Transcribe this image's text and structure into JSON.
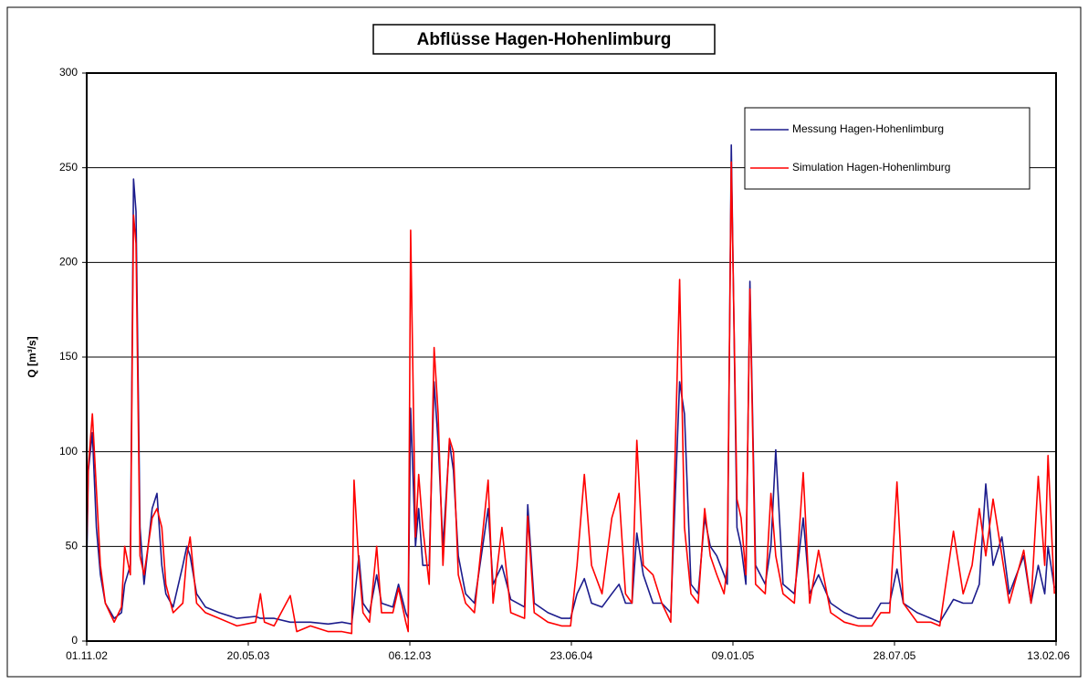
{
  "chart_data": {
    "type": "line",
    "title": "Abflüsse Hagen-Hohenlimburg",
    "ylabel": "Q [m³/s]",
    "legend": "upper right",
    "grid": true,
    "ylim": [
      0,
      300
    ],
    "yticks": [
      0,
      50,
      100,
      150,
      200,
      250,
      300
    ],
    "xlim": [
      "2002-11-01",
      "2006-02-13"
    ],
    "xticks": [
      {
        "value": "2002-11-01",
        "label": "01.11.02"
      },
      {
        "value": "2003-05-20",
        "label": "20.05.03"
      },
      {
        "value": "2003-12-06",
        "label": "06.12.03"
      },
      {
        "value": "2004-06-23",
        "label": "23.06.04"
      },
      {
        "value": "2005-01-09",
        "label": "09.01.05"
      },
      {
        "value": "2005-07-28",
        "label": "28.07.05"
      },
      {
        "value": "2006-02-13",
        "label": "13.02.06"
      }
    ],
    "x": [
      "2002-11-01",
      "2002-11-03",
      "2002-11-08",
      "2002-11-13",
      "2002-11-18",
      "2002-11-24",
      "2002-12-05",
      "2002-12-14",
      "2002-12-18",
      "2002-12-25",
      "2002-12-29",
      "2003-01-01",
      "2003-01-06",
      "2003-01-11",
      "2003-01-21",
      "2003-01-27",
      "2003-02-02",
      "2003-02-07",
      "2003-02-16",
      "2003-02-28",
      "2003-03-05",
      "2003-03-09",
      "2003-03-17",
      "2003-03-28",
      "2003-04-14",
      "2003-05-06",
      "2003-05-29",
      "2003-06-04",
      "2003-06-09",
      "2003-06-21",
      "2003-07-11",
      "2003-07-19",
      "2003-08-05",
      "2003-08-27",
      "2003-09-13",
      "2003-09-25",
      "2003-09-28",
      "2003-10-04",
      "2003-10-09",
      "2003-10-17",
      "2003-10-26",
      "2003-11-01",
      "2003-11-15",
      "2003-11-22",
      "2003-12-01",
      "2003-12-04",
      "2003-12-07",
      "2003-12-13",
      "2003-12-17",
      "2003-12-22",
      "2003-12-30",
      "2004-01-05",
      "2004-01-10",
      "2004-01-16",
      "2004-01-24",
      "2004-01-29",
      "2004-02-04",
      "2004-02-13",
      "2004-02-24",
      "2004-03-12",
      "2004-03-18",
      "2004-03-29",
      "2004-04-09",
      "2004-04-26",
      "2004-04-30",
      "2004-05-08",
      "2004-05-25",
      "2004-06-11",
      "2004-06-22",
      "2004-06-30",
      "2004-07-09",
      "2004-07-18",
      "2004-07-31",
      "2004-08-12",
      "2004-08-21",
      "2004-08-29",
      "2004-09-06",
      "2004-09-12",
      "2004-09-20",
      "2004-10-02",
      "2004-10-13",
      "2004-10-24",
      "2004-11-04",
      "2004-11-10",
      "2004-11-18",
      "2004-11-27",
      "2004-12-05",
      "2004-12-12",
      "2004-12-20",
      "2004-12-29",
      "2005-01-02",
      "2005-01-07",
      "2005-01-14",
      "2005-01-19",
      "2005-01-25",
      "2005-01-30",
      "2005-02-06",
      "2005-02-18",
      "2005-02-25",
      "2005-03-03",
      "2005-03-12",
      "2005-03-26",
      "2005-04-06",
      "2005-04-14",
      "2005-04-25",
      "2005-05-10",
      "2005-05-27",
      "2005-06-13",
      "2005-06-30",
      "2005-07-11",
      "2005-07-22",
      "2005-07-31",
      "2005-08-08",
      "2005-08-25",
      "2005-09-11",
      "2005-09-22",
      "2005-10-09",
      "2005-10-21",
      "2005-11-01",
      "2005-11-10",
      "2005-11-18",
      "2005-11-27",
      "2005-12-08",
      "2005-12-17",
      "2006-01-04",
      "2006-01-13",
      "2006-01-22",
      "2006-01-30",
      "2006-02-03",
      "2006-02-11"
    ],
    "series": [
      {
        "name": "Messung Hagen-Hohenlimburg",
        "color": "#1c1c8c",
        "values": [
          40,
          90,
          110,
          60,
          35,
          20,
          12,
          15,
          30,
          40,
          244,
          227,
          60,
          30,
          70,
          78,
          40,
          25,
          18,
          40,
          50,
          45,
          25,
          18,
          15,
          12,
          13,
          12,
          12,
          12,
          10,
          10,
          10,
          9,
          10,
          9,
          20,
          45,
          20,
          15,
          35,
          20,
          18,
          30,
          15,
          12,
          123,
          50,
          70,
          40,
          40,
          137,
          105,
          50,
          105,
          90,
          45,
          25,
          20,
          70,
          30,
          40,
          22,
          18,
          72,
          20,
          15,
          12,
          12,
          25,
          33,
          20,
          18,
          25,
          30,
          20,
          20,
          57,
          35,
          20,
          20,
          15,
          137,
          120,
          30,
          25,
          65,
          50,
          45,
          35,
          30,
          262,
          60,
          50,
          30,
          190,
          40,
          30,
          50,
          101,
          30,
          25,
          65,
          25,
          35,
          20,
          15,
          12,
          12,
          20,
          20,
          38,
          20,
          15,
          12,
          10,
          22,
          20,
          20,
          30,
          83,
          40,
          55,
          25,
          45,
          20,
          40,
          25,
          50,
          28
        ]
      },
      {
        "name": "Simulation Hagen-Hohenlimburg",
        "color": "#ff0000",
        "values": [
          50,
          92,
          120,
          80,
          40,
          20,
          10,
          18,
          50,
          35,
          225,
          210,
          45,
          35,
          65,
          70,
          60,
          30,
          15,
          20,
          45,
          55,
          20,
          15,
          12,
          8,
          10,
          25,
          10,
          8,
          24,
          5,
          8,
          5,
          5,
          4,
          85,
          40,
          15,
          10,
          50,
          15,
          15,
          28,
          10,
          5,
          217,
          55,
          88,
          60,
          30,
          155,
          120,
          40,
          107,
          100,
          35,
          20,
          15,
          85,
          20,
          60,
          15,
          12,
          66,
          15,
          10,
          8,
          8,
          40,
          88,
          40,
          25,
          65,
          78,
          25,
          20,
          106,
          40,
          35,
          20,
          10,
          191,
          60,
          25,
          20,
          70,
          45,
          35,
          25,
          40,
          253,
          75,
          65,
          35,
          186,
          30,
          25,
          78,
          45,
          25,
          20,
          89,
          20,
          48,
          15,
          10,
          8,
          8,
          15,
          15,
          84,
          20,
          10,
          10,
          8,
          58,
          25,
          40,
          70,
          45,
          75,
          45,
          20,
          48,
          20,
          87,
          40,
          98,
          25
        ]
      }
    ]
  }
}
